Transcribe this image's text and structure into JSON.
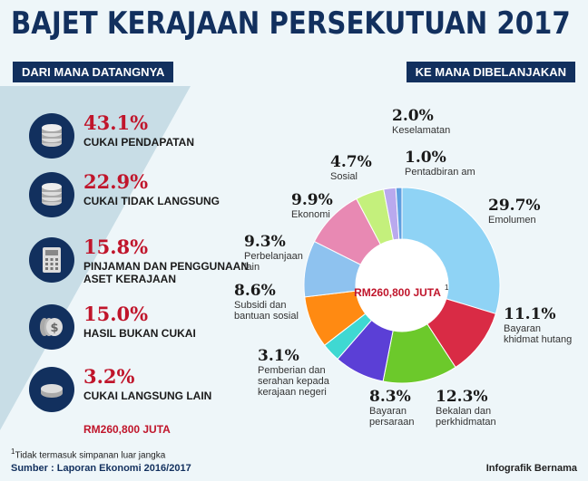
{
  "title": "BAJET KERAJAAN PERSEKUTUAN 2017",
  "left_header": "DARI MANA DATANGNYA",
  "right_header": "KE MANA DIBELANJAKAN",
  "revenue": [
    {
      "pct": "43.1%",
      "label": "CUKAI PENDAPATAN",
      "icon": "coins-icon"
    },
    {
      "pct": "22.9%",
      "label": "CUKAI TIDAK LANGSUNG",
      "icon": "coins-icon"
    },
    {
      "pct": "15.8%",
      "label": "PINJAMAN DAN PENGGUNAAN",
      "label2": "ASET KERAJAAN",
      "icon": "calculator-icon"
    },
    {
      "pct": "15.0%",
      "label": "HASIL BUKAN CUKAI",
      "icon": "dollar-coins-icon"
    },
    {
      "pct": "3.2%",
      "label": "CUKAI LANGSUNG LAIN",
      "icon": "coin-icon"
    }
  ],
  "revenue_total": "RM260,800 JUTA",
  "footnote_mark": "1",
  "footnote": "Tidak termasuk simpanan luar jangka",
  "source": "Sumber : Laporan Ekonomi 2016/2017",
  "credit": "Infografik Bernama",
  "chart_data": {
    "type": "pie",
    "style": "donut",
    "center_label": "RM260,800 JUTA",
    "center_sup": "1",
    "categories": [
      "Emolumen",
      "Bayaran khidmat hutang",
      "Bekalan dan perkhidmatan",
      "Bayaran persaraan",
      "Pemberian dan serahan kepada kerajaan negeri",
      "Subsidi dan bantuan sosial",
      "Perbelanjaan lain",
      "Ekonomi",
      "Sosial",
      "Keselamatan",
      "Pentadbiran am"
    ],
    "values": [
      29.7,
      11.1,
      12.3,
      8.3,
      3.1,
      8.6,
      9.3,
      9.9,
      4.7,
      2.0,
      1.0
    ],
    "labels": [
      "29.7%",
      "11.1%",
      "12.3%",
      "8.3%",
      "3.1%",
      "8.6%",
      "9.3%",
      "9.9%",
      "4.7%",
      "2.0%",
      "1.0%"
    ],
    "label_lines": [
      [
        "Emolumen"
      ],
      [
        "Bayaran",
        "khidmat hutang"
      ],
      [
        "Bekalan dan",
        "perkhidmatan"
      ],
      [
        "Bayaran",
        "persaraan"
      ],
      [
        "Pemberian dan",
        "serahan kepada",
        "kerajaan negeri"
      ],
      [
        "Subsidi dan",
        "bantuan sosial"
      ],
      [
        "Perbelanjaan",
        "lain"
      ],
      [
        "Ekonomi"
      ],
      [
        "Sosial"
      ],
      [
        "Keselamatan"
      ],
      [
        "Pentadbiran am"
      ]
    ],
    "colors": [
      "#8fd3f5",
      "#d92b45",
      "#6cc92b",
      "#5b3fd6",
      "#3fd8d2",
      "#ff8a12",
      "#8ec2ef",
      "#e889b3",
      "#c4f07c",
      "#b9a9ee",
      "#5f9fe0"
    ]
  }
}
